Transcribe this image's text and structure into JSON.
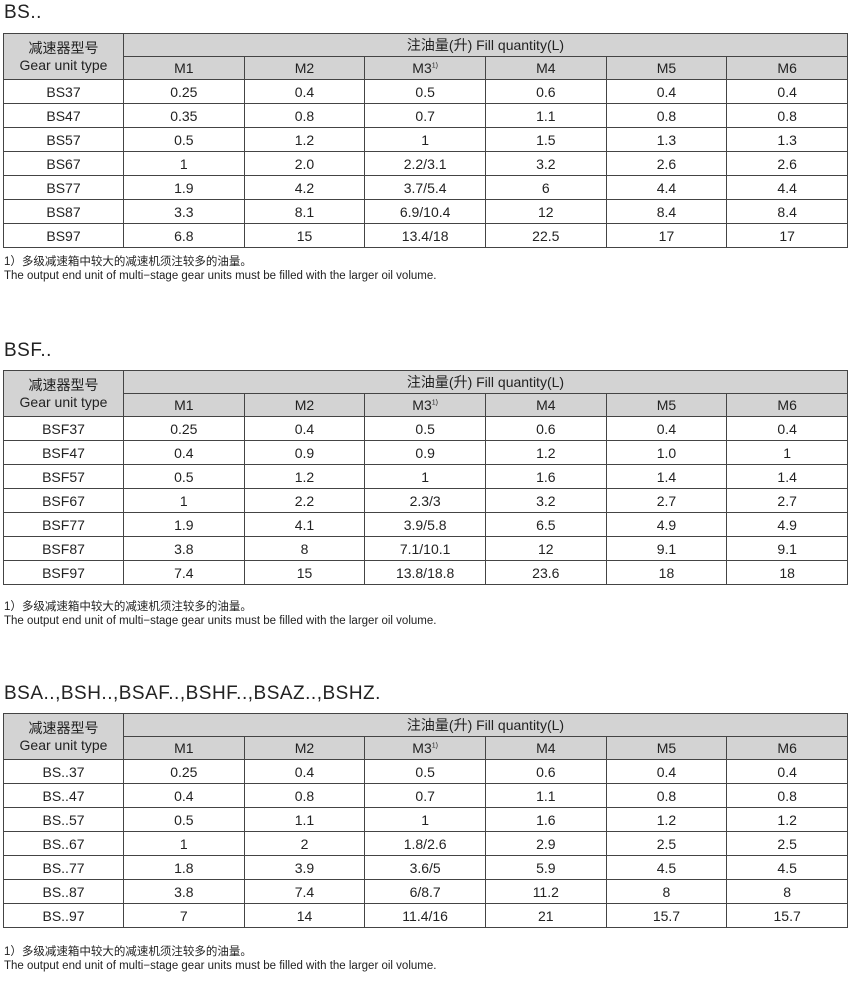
{
  "header_labels": {
    "type_cn": "减速器型号",
    "type_en": "Gear unit type",
    "fill": "注油量(升) Fill quantity(L)",
    "positions": [
      "M1",
      "M2",
      "M3",
      "M4",
      "M5",
      "M6"
    ],
    "m3_sup": "1)"
  },
  "footnote": {
    "cn": "1）多级减速箱中较大的减速机须注较多的油量。",
    "en": "The output end unit of multi−stage gear units must be filled with the larger oil volume."
  },
  "sections": [
    {
      "title": "BS..",
      "rows": [
        [
          "BS37",
          "0.25",
          "0.4",
          "0.5",
          "0.6",
          "0.4",
          "0.4"
        ],
        [
          "BS47",
          "0.35",
          "0.8",
          "0.7",
          "1.1",
          "0.8",
          "0.8"
        ],
        [
          "BS57",
          "0.5",
          "1.2",
          "1",
          "1.5",
          "1.3",
          "1.3"
        ],
        [
          "BS67",
          "1",
          "2.0",
          "2.2/3.1",
          "3.2",
          "2.6",
          "2.6"
        ],
        [
          "BS77",
          "1.9",
          "4.2",
          "3.7/5.4",
          "6",
          "4.4",
          "4.4"
        ],
        [
          "BS87",
          "3.3",
          "8.1",
          "6.9/10.4",
          "12",
          "8.4",
          "8.4"
        ],
        [
          "BS97",
          "6.8",
          "15",
          "13.4/18",
          "22.5",
          "17",
          "17"
        ]
      ]
    },
    {
      "title": "BSF..",
      "rows": [
        [
          "BSF37",
          "0.25",
          "0.4",
          "0.5",
          "0.6",
          "0.4",
          "0.4"
        ],
        [
          "BSF47",
          "0.4",
          "0.9",
          "0.9",
          "1.2",
          "1.0",
          "1"
        ],
        [
          "BSF57",
          "0.5",
          "1.2",
          "1",
          "1.6",
          "1.4",
          "1.4"
        ],
        [
          "BSF67",
          "1",
          "2.2",
          "2.3/3",
          "3.2",
          "2.7",
          "2.7"
        ],
        [
          "BSF77",
          "1.9",
          "4.1",
          "3.9/5.8",
          "6.5",
          "4.9",
          "4.9"
        ],
        [
          "BSF87",
          "3.8",
          "8",
          "7.1/10.1",
          "12",
          "9.1",
          "9.1"
        ],
        [
          "BSF97",
          "7.4",
          "15",
          "13.8/18.8",
          "23.6",
          "18",
          "18"
        ]
      ]
    },
    {
      "title": "BSA..,BSH..,BSAF..,BSHF..,BSAZ..,BSHZ.",
      "rows": [
        [
          "BS..37",
          "0.25",
          "0.4",
          "0.5",
          "0.6",
          "0.4",
          "0.4"
        ],
        [
          "BS..47",
          "0.4",
          "0.8",
          "0.7",
          "1.1",
          "0.8",
          "0.8"
        ],
        [
          "BS..57",
          "0.5",
          "1.1",
          "1",
          "1.6",
          "1.2",
          "1.2"
        ],
        [
          "BS..67",
          "1",
          "2",
          "1.8/2.6",
          "2.9",
          "2.5",
          "2.5"
        ],
        [
          "BS..77",
          "1.8",
          "3.9",
          "3.6/5",
          "5.9",
          "4.5",
          "4.5"
        ],
        [
          "BS..87",
          "3.8",
          "7.4",
          "6/8.7",
          "11.2",
          "8",
          "8"
        ],
        [
          "BS..97",
          "7",
          "14",
          "11.4/16",
          "21",
          "15.7",
          "15.7"
        ]
      ]
    }
  ]
}
